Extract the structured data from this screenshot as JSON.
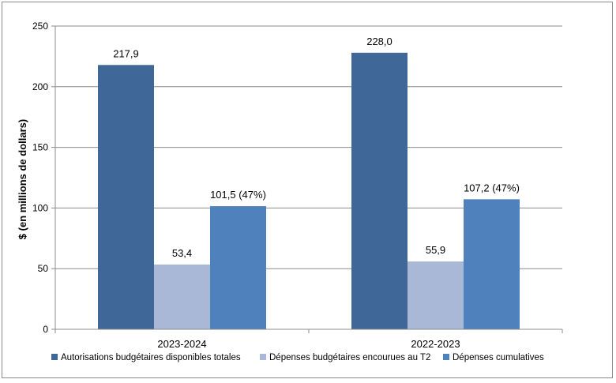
{
  "chart_data": {
    "type": "bar",
    "title": "",
    "xlabel": "",
    "ylabel": "$ (en millions de dollars)",
    "ylim": [
      0,
      250
    ],
    "yticks": [
      0,
      50,
      100,
      150,
      200,
      250
    ],
    "grid": true,
    "categories": [
      "2023-2024",
      "2022-2023"
    ],
    "series": [
      {
        "name": "Autorisations budgétaires disponibles totales",
        "color": "#3F6797",
        "values": [
          217.9,
          228.0
        ],
        "labels": [
          "217,9",
          "228,0"
        ]
      },
      {
        "name": "Dépenses budgétaires encourues au T2",
        "color": "#A9B8D6",
        "values": [
          53.4,
          55.9
        ],
        "labels": [
          "53,4",
          "55,9"
        ]
      },
      {
        "name": "Dépenses cumulatives",
        "color": "#4F81BD",
        "values": [
          101.5,
          107.2
        ],
        "labels": [
          "101,5 (47%)",
          "107,2 (47%)"
        ]
      }
    ],
    "legend_position": "bottom"
  }
}
